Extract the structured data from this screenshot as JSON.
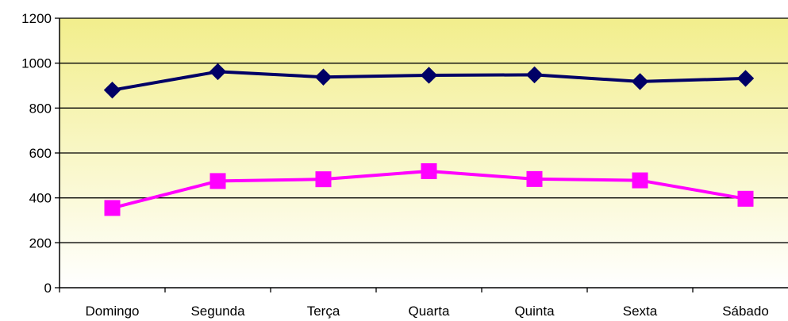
{
  "chart_data": {
    "type": "line",
    "categories": [
      "Domingo",
      "Segunda",
      "Terça",
      "Quarta",
      "Quinta",
      "Sexta",
      "Sábado"
    ],
    "series": [
      {
        "values": [
          880,
          962,
          938,
          946,
          948,
          918,
          932
        ],
        "color": "#000066",
        "marker": "diamond"
      },
      {
        "values": [
          355,
          475,
          483,
          519,
          484,
          478,
          396
        ],
        "color": "#ff00ff",
        "marker": "square"
      }
    ],
    "ylim": [
      0,
      1200
    ],
    "yticks": [
      0,
      200,
      400,
      600,
      800,
      1000,
      1200
    ],
    "grid": true,
    "background_gradient": [
      "#f2ee8c",
      "#ffffff"
    ]
  }
}
